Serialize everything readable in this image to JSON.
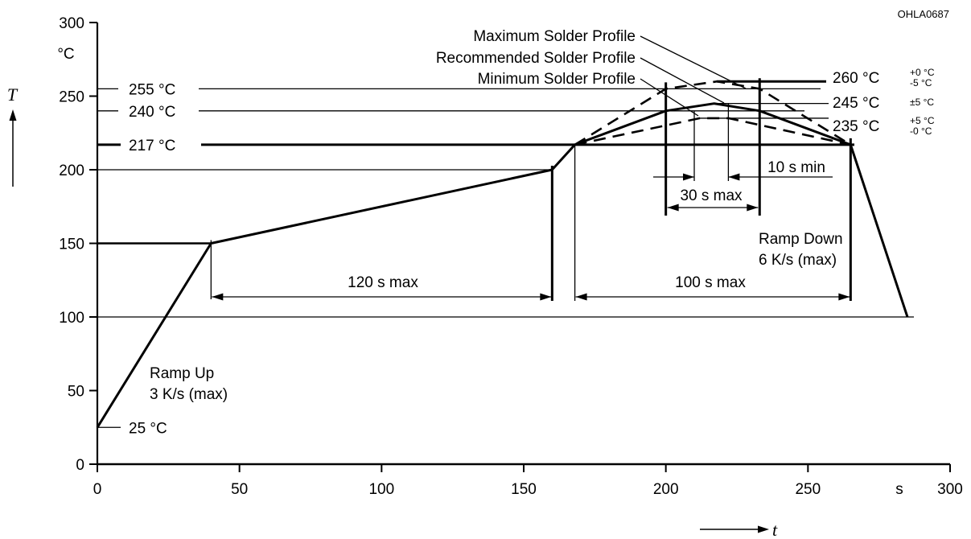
{
  "figure_code": "OHLA0687",
  "chart_data": {
    "type": "line",
    "title": "",
    "xlabel": "t",
    "x_unit": "s",
    "ylabel": "T",
    "y_unit": "°C",
    "xlim": [
      0,
      300
    ],
    "ylim": [
      0,
      300
    ],
    "x_ticks": [
      0,
      50,
      100,
      150,
      200,
      250,
      300
    ],
    "y_ticks": [
      0,
      50,
      100,
      150,
      200,
      250,
      300
    ],
    "grid": false,
    "series": [
      {
        "name": "Recommended Solder Profile",
        "style": "solid",
        "points": [
          [
            0,
            25
          ],
          [
            40,
            150
          ],
          [
            160,
            200
          ],
          [
            168,
            217
          ],
          [
            200,
            240
          ],
          [
            217,
            245
          ],
          [
            233,
            240
          ],
          [
            265,
            217
          ],
          [
            285,
            100
          ]
        ]
      },
      {
        "name": "Maximum Solder Profile",
        "style": "dashed",
        "points": [
          [
            168,
            217
          ],
          [
            200,
            255
          ],
          [
            218,
            260
          ],
          [
            233,
            255
          ],
          [
            265,
            217
          ]
        ]
      },
      {
        "name": "Minimum Solder Profile",
        "style": "dashed",
        "points": [
          [
            168,
            217
          ],
          [
            212,
            235
          ],
          [
            222,
            235
          ],
          [
            265,
            217
          ]
        ]
      }
    ],
    "reference_lines": [
      {
        "label": "255 °C",
        "y": 255
      },
      {
        "label": "240 °C",
        "y": 240
      },
      {
        "label": "217 °C",
        "y": 217
      },
      {
        "label": "25 °C",
        "y": 25
      }
    ],
    "right_labels": [
      {
        "main": "260 °C",
        "sup": "+0 °C",
        "sub": "-5 °C",
        "y": 260
      },
      {
        "main": "245 °C",
        "sup": "±5 °C",
        "sub": "",
        "y": 245
      },
      {
        "main": "235 °C",
        "sup": "+5 °C",
        "sub": "-0 °C",
        "y": 235
      }
    ],
    "annotations": [
      {
        "text": "Maximum Solder Profile"
      },
      {
        "text": "Recommended Solder Profile"
      },
      {
        "text": "Minimum Solder Profile"
      },
      {
        "text": "120 s max"
      },
      {
        "text": "100 s max"
      },
      {
        "text": "30 s max"
      },
      {
        "text": "10 s min"
      },
      {
        "text": "Ramp Up"
      },
      {
        "text": "3 K/s (max)"
      },
      {
        "text": "Ramp Down"
      },
      {
        "text": "6 K/s (max)"
      }
    ]
  }
}
